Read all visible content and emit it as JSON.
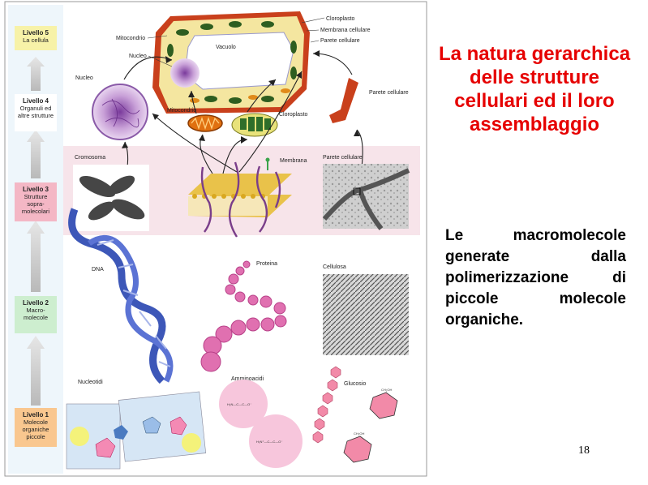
{
  "title": "La natura gerarchica delle strutture cellulari ed il loro assemblaggio",
  "body_text": "Le macromolecole generate dalla polimerizzazione di piccole molecole organiche.",
  "page_number": "18",
  "levels": [
    {
      "name": "Livello 5",
      "desc": "La cellula",
      "color": "#f7f2a8"
    },
    {
      "name": "Livello 4",
      "desc": "Organuli ed altre strutture",
      "color": "#ffffff"
    },
    {
      "name": "Livello 3",
      "desc": "Strutture sopra-molecolari",
      "color": "#f4b7c5"
    },
    {
      "name": "Livello 2",
      "desc": "Macro-molecole",
      "color": "#cdeecf"
    },
    {
      "name": "Livello 1",
      "desc": "Molecole organiche piccole",
      "color": "#f9c78f"
    }
  ],
  "labels": {
    "mitocondrio_top": "Mitocondrio",
    "nucleo_top": "Nucleo",
    "vacuolo": "Vacuolo",
    "cloroplasto_top": "Cloroplasto",
    "membrana_cellulare": "Membrana cellulare",
    "parete_cellulare_top": "Parete cellulare",
    "nucleo": "Nucleo",
    "mitocondrio": "Mitocondrio",
    "cloroplasto": "Cloroplasto",
    "parete_cellulare": "Parete cellulare",
    "cromosoma": "Cromosoma",
    "membrana": "Membrana",
    "parete_cellulare_mid": "Parete cellulare",
    "dna": "DNA",
    "proteina": "Proteina",
    "cellulosa": "Cellulosa",
    "nucleotidi": "Nucleotidi",
    "amminoacidi": "Amminoacidi",
    "glucosio": "Glucosio"
  },
  "chem": {
    "amino1_a": "H₂N—C—C—O⁻",
    "amino2_a": "H₃N⁺—C—C—O⁻",
    "glc_a": "CH₂OH"
  },
  "colors": {
    "title_red": "#e60000",
    "level3_band": "#f7e4ea",
    "dna_blue": "#3d57b8",
    "protein_pink": "#e070b0",
    "glucose_pink": "#f28aa8",
    "cell_wall": "#c9401c"
  }
}
